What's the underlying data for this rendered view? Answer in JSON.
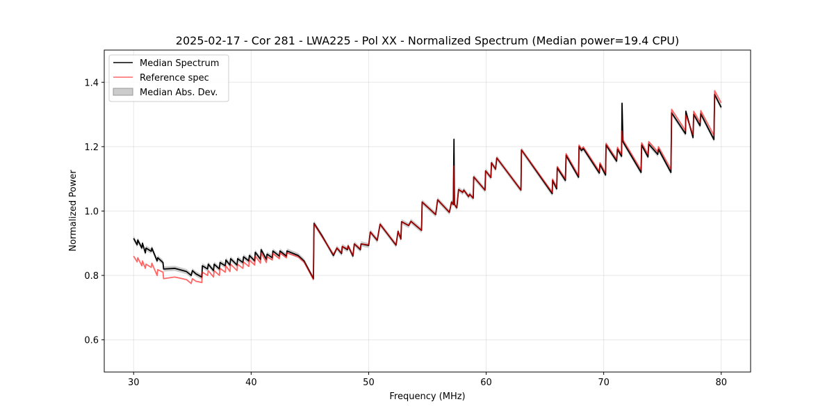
{
  "chart_data": {
    "type": "line",
    "title": "2025-02-17 - Cor 281 - LWA225 - Pol XX - Normalized Spectrum (Median power=19.4 CPU)",
    "xlabel": "Frequency (MHz)",
    "ylabel": "Normalized Power",
    "xlim": [
      27.5,
      82.5
    ],
    "ylim": [
      0.5,
      1.5
    ],
    "xticks": [
      30,
      40,
      50,
      60,
      70,
      80
    ],
    "xtick_labels": [
      "30",
      "40",
      "50",
      "60",
      "70",
      "80"
    ],
    "yticks": [
      0.6,
      0.8,
      1.0,
      1.2,
      1.4
    ],
    "ytick_labels": [
      "0.6",
      "0.8",
      "1.0",
      "1.2",
      "1.4"
    ],
    "grid": true,
    "legend_position": "top-left",
    "legend": [
      "Median Spectrum",
      "Reference spec",
      "Median Abs. Dev."
    ],
    "colors": {
      "median": "#000000",
      "reference": "#ff0000",
      "reference_alpha": 0.6,
      "mad": "#999999"
    },
    "mad_approx": 0.008,
    "x": [
      30.0,
      30.3,
      30.35,
      30.7,
      30.75,
      31.0,
      31.05,
      31.5,
      31.55,
      32.0,
      32.05,
      32.5,
      32.55,
      33.5,
      34.5,
      34.9,
      35.0,
      35.3,
      35.8,
      35.85,
      36.3,
      36.35,
      36.8,
      36.85,
      37.3,
      37.35,
      37.8,
      37.85,
      38.2,
      38.25,
      38.8,
      38.85,
      39.3,
      39.35,
      39.8,
      39.85,
      40.3,
      40.35,
      40.8,
      40.85,
      41.3,
      41.35,
      41.8,
      41.85,
      42.4,
      42.45,
      43.0,
      43.05,
      44.0,
      44.5,
      45.3,
      45.35,
      46.0,
      47.0,
      47.3,
      47.7,
      47.75,
      48.2,
      48.25,
      48.66,
      48.78,
      49.3,
      49.35,
      50.0,
      50.14,
      50.73,
      50.97,
      52.33,
      52.5,
      52.74,
      52.8,
      53.4,
      53.6,
      54.5,
      54.55,
      55.7,
      55.87,
      56.87,
      57.05,
      57.2,
      57.26,
      57.3,
      57.5,
      57.65,
      58.0,
      58.1,
      58.5,
      58.6,
      58.9,
      58.94,
      59.9,
      59.95,
      60.4,
      60.45,
      60.8,
      60.9,
      62.96,
      63.0,
      65.62,
      65.65,
      66.0,
      66.05,
      66.74,
      66.8,
      67.86,
      67.9,
      68.1,
      68.27,
      69.63,
      69.68,
      70.16,
      70.2,
      71.1,
      71.17,
      71.52,
      71.56,
      71.64,
      73.18,
      73.23,
      73.77,
      73.83,
      74.6,
      74.66,
      75.72,
      75.78,
      76.96,
      76.99,
      77.6,
      77.66,
      78.2,
      78.26,
      79.38,
      79.44,
      80.0
    ],
    "series": [
      {
        "name": "Median Spectrum",
        "values": [
          0.915,
          0.895,
          0.91,
          0.885,
          0.9,
          0.87,
          0.885,
          0.875,
          0.885,
          0.845,
          0.855,
          0.84,
          0.82,
          0.822,
          0.812,
          0.8,
          0.815,
          0.805,
          0.795,
          0.83,
          0.82,
          0.835,
          0.815,
          0.835,
          0.82,
          0.84,
          0.83,
          0.848,
          0.832,
          0.852,
          0.832,
          0.852,
          0.84,
          0.858,
          0.845,
          0.862,
          0.845,
          0.872,
          0.85,
          0.88,
          0.85,
          0.866,
          0.855,
          0.876,
          0.86,
          0.876,
          0.86,
          0.876,
          0.862,
          0.845,
          0.79,
          0.962,
          0.925,
          0.862,
          0.885,
          0.868,
          0.89,
          0.88,
          0.892,
          0.86,
          0.898,
          0.88,
          0.898,
          0.893,
          0.935,
          0.909,
          0.959,
          0.894,
          0.937,
          0.913,
          0.967,
          0.955,
          0.968,
          0.94,
          1.028,
          0.989,
          1.035,
          0.996,
          1.028,
          1.02,
          1.223,
          1.02,
          1.01,
          1.067,
          1.058,
          1.065,
          1.045,
          1.052,
          1.04,
          1.106,
          1.065,
          1.125,
          1.104,
          1.15,
          1.13,
          1.165,
          1.065,
          1.19,
          1.054,
          1.095,
          1.069,
          1.134,
          1.095,
          1.173,
          1.105,
          1.2,
          1.188,
          1.194,
          1.118,
          1.145,
          1.112,
          1.205,
          1.155,
          1.192,
          1.17,
          1.335,
          1.215,
          1.12,
          1.205,
          1.168,
          1.208,
          1.176,
          1.192,
          1.12,
          1.305,
          1.24,
          1.31,
          1.228,
          1.3,
          1.265,
          1.302,
          1.222,
          1.362,
          1.322
        ]
      },
      {
        "name": "Reference spec",
        "values": [
          0.86,
          0.842,
          0.855,
          0.83,
          0.845,
          0.822,
          0.835,
          0.825,
          0.838,
          0.8,
          0.818,
          0.81,
          0.79,
          0.795,
          0.787,
          0.775,
          0.79,
          0.782,
          0.778,
          0.81,
          0.8,
          0.815,
          0.795,
          0.815,
          0.8,
          0.822,
          0.81,
          0.83,
          0.812,
          0.835,
          0.815,
          0.835,
          0.822,
          0.842,
          0.828,
          0.848,
          0.832,
          0.86,
          0.838,
          0.87,
          0.84,
          0.858,
          0.848,
          0.868,
          0.852,
          0.87,
          0.855,
          0.87,
          0.858,
          0.842,
          0.788,
          0.96,
          0.922,
          0.865,
          0.885,
          0.87,
          0.89,
          0.882,
          0.892,
          0.862,
          0.898,
          0.882,
          0.898,
          0.895,
          0.935,
          0.91,
          0.959,
          0.895,
          0.937,
          0.913,
          0.967,
          0.955,
          0.968,
          0.94,
          1.028,
          0.989,
          1.035,
          0.996,
          1.028,
          1.02,
          1.14,
          1.02,
          1.01,
          1.067,
          1.058,
          1.065,
          1.045,
          1.052,
          1.04,
          1.106,
          1.065,
          1.125,
          1.104,
          1.15,
          1.13,
          1.165,
          1.065,
          1.19,
          1.058,
          1.099,
          1.073,
          1.138,
          1.1,
          1.178,
          1.11,
          1.205,
          1.193,
          1.199,
          1.123,
          1.15,
          1.118,
          1.21,
          1.161,
          1.198,
          1.176,
          1.249,
          1.221,
          1.128,
          1.212,
          1.176,
          1.216,
          1.184,
          1.2,
          1.13,
          1.316,
          1.25,
          1.298,
          1.238,
          1.31,
          1.275,
          1.312,
          1.235,
          1.374,
          1.336
        ]
      }
    ]
  }
}
